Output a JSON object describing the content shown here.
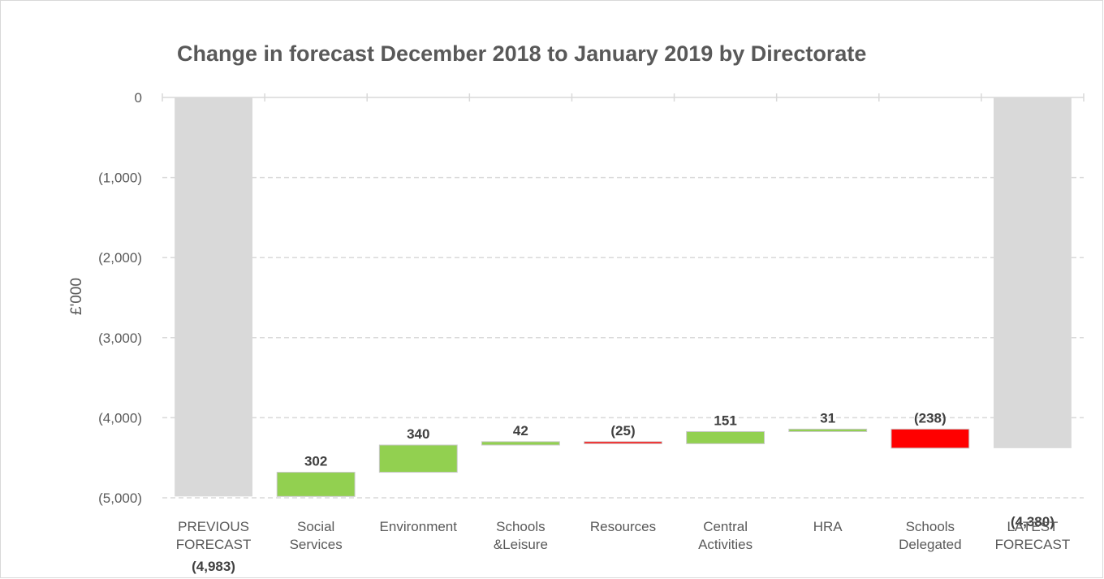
{
  "chart_data": {
    "type": "waterfall",
    "title": "Change in forecast December 2018 to January 2019 by Directorate",
    "y_label": "£'000",
    "categories": [
      "PREVIOUS FORECAST",
      "Social Services",
      "Environment",
      "Schools &Leisure",
      "Resources",
      "Central Activities",
      "HRA",
      "Schools Delegated",
      "LATEST FORECAST"
    ],
    "values": [
      -4983,
      302,
      340,
      42,
      -25,
      151,
      31,
      -238,
      -4380
    ],
    "value_labels": [
      "(4,983)",
      "302",
      "340",
      "42",
      "(25)",
      "151",
      "31",
      "(238)",
      "(4,380)"
    ],
    "is_total": [
      true,
      false,
      false,
      false,
      false,
      false,
      false,
      false,
      true
    ],
    "colors": [
      "#d9d9d9",
      "#92d050",
      "#92d050",
      "#92d050",
      "#ff0000",
      "#92d050",
      "#92d050",
      "#ff0000",
      "#d9d9d9"
    ],
    "ylim": [
      -5000,
      0
    ],
    "yticks": [
      {
        "value": -5000,
        "label": "(5,000)"
      },
      {
        "value": -4000,
        "label": "(4,000)"
      },
      {
        "value": -3000,
        "label": "(3,000)"
      },
      {
        "value": -2000,
        "label": "(2,000)"
      },
      {
        "value": -1000,
        "label": "(1,000)"
      },
      0
    ],
    "grid": true
  }
}
